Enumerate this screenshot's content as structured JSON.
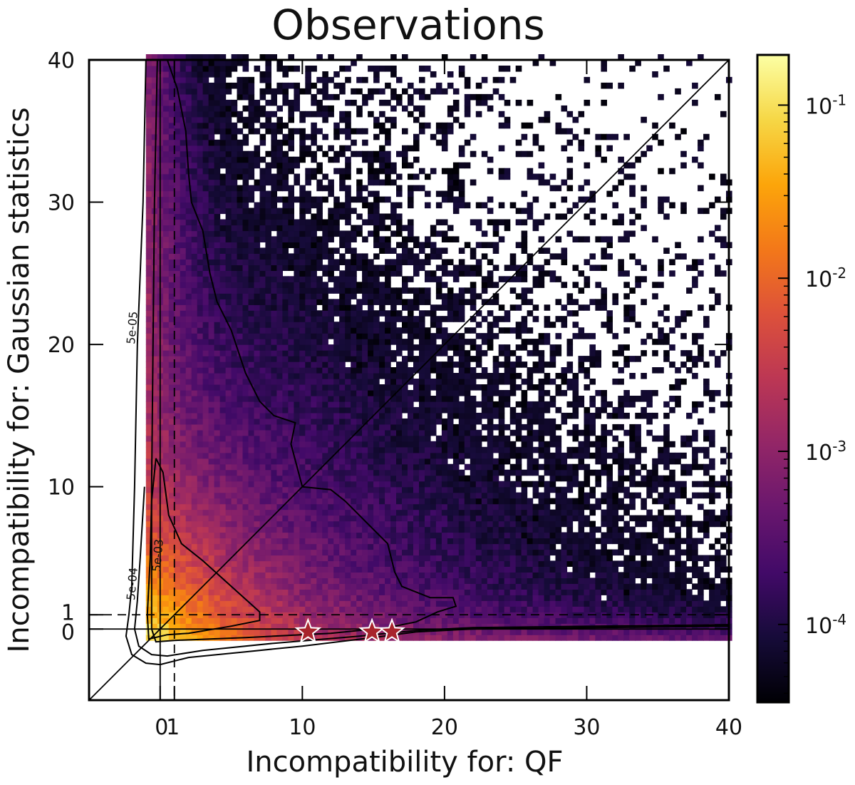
{
  "chart_data": {
    "type": "heatmap",
    "title": "Observations",
    "xlabel": "Incompatibility for: QF",
    "ylabel": "Incompatibility for: Gaussian statistics",
    "xlim": [
      -5,
      40
    ],
    "ylim": [
      -5,
      40
    ],
    "xticks": [
      {
        "v": 0,
        "label": "0"
      },
      {
        "v": 1,
        "label": "1"
      },
      {
        "v": 10,
        "label": "10"
      },
      {
        "v": 20,
        "label": "20"
      },
      {
        "v": 30,
        "label": "30"
      },
      {
        "v": 40,
        "label": "40"
      }
    ],
    "yticks": [
      {
        "v": 0,
        "label": "0"
      },
      {
        "v": 1,
        "label": "1"
      },
      {
        "v": 10,
        "label": "10"
      },
      {
        "v": 20,
        "label": "20"
      },
      {
        "v": 30,
        "label": "30"
      },
      {
        "v": 40,
        "label": "40"
      }
    ],
    "colormap": "inferno",
    "color_scale": "log",
    "colorbar_range": [
      3.55e-05,
      0.195
    ],
    "colorbar_ticks": [
      {
        "v": 0.1,
        "base": "10",
        "exp": "-1"
      },
      {
        "v": 0.01,
        "base": "10",
        "exp": "-2"
      },
      {
        "v": 0.001,
        "base": "10",
        "exp": "-3"
      },
      {
        "v": 0.0001,
        "base": "10",
        "exp": "-4"
      }
    ],
    "reference_lines": [
      {
        "type": "diagonal",
        "eq": "y=x",
        "style": "solid"
      },
      {
        "type": "horizontal",
        "y": 0,
        "style": "solid"
      },
      {
        "type": "horizontal",
        "y": 1,
        "style": "dashed"
      },
      {
        "type": "vertical",
        "x": 0,
        "style": "solid"
      },
      {
        "type": "vertical",
        "x": 1,
        "style": "dashed"
      }
    ],
    "contours": [
      {
        "label": "5e-05",
        "points": [
          [
            -1,
            40
          ],
          [
            -1.2,
            30
          ],
          [
            -1.6,
            20
          ],
          [
            -1.8,
            10
          ],
          [
            -2,
            3
          ],
          [
            -2.2,
            1
          ],
          [
            -2.4,
            -0.5
          ],
          [
            -2,
            -1.8
          ],
          [
            -1,
            -2.4
          ],
          [
            0,
            -2.5
          ],
          [
            2,
            -2
          ],
          [
            6,
            -1.6
          ],
          [
            10,
            -1.2
          ],
          [
            15,
            -0.6
          ],
          [
            18,
            -0.2
          ],
          [
            22,
            0
          ],
          [
            40,
            0.2
          ]
        ]
      },
      {
        "label": "5e-04",
        "points": [
          [
            -1.1,
            10
          ],
          [
            -1.4,
            5
          ],
          [
            -1.6,
            2
          ],
          [
            -1.8,
            0
          ],
          [
            -1.5,
            -1.2
          ],
          [
            -0.6,
            -1.8
          ],
          [
            0.5,
            -1.9
          ],
          [
            3,
            -1.5
          ],
          [
            8,
            -1
          ],
          [
            14,
            -0.5
          ],
          [
            18,
            -0.1
          ],
          [
            22,
            0.1
          ],
          [
            40,
            0.3
          ]
        ]
      },
      {
        "label": "",
        "points": [
          [
            0.5,
            40
          ],
          [
            1.2,
            38
          ],
          [
            1.8,
            35
          ],
          [
            2,
            32
          ],
          [
            2.2,
            30
          ],
          [
            3,
            28
          ],
          [
            3.5,
            25
          ],
          [
            4,
            23
          ],
          [
            5,
            21
          ],
          [
            6,
            18
          ],
          [
            7,
            16
          ],
          [
            8,
            15
          ],
          [
            9.5,
            14.5
          ],
          [
            9.2,
            13
          ],
          [
            10,
            10
          ],
          [
            12,
            9.8
          ],
          [
            13,
            9
          ],
          [
            14,
            8
          ],
          [
            16,
            6
          ],
          [
            16.5,
            4
          ],
          [
            17,
            3
          ],
          [
            19,
            2.2
          ],
          [
            20.6,
            2.2
          ],
          [
            20.8,
            1.6
          ],
          [
            19.5,
            1.2
          ],
          [
            18,
            0.5
          ],
          [
            16,
            0.1
          ],
          [
            12,
            -0.3
          ],
          [
            6,
            -0.6
          ],
          [
            1,
            -0.8
          ],
          [
            -0.3,
            -0.9
          ],
          [
            -0.6,
            0
          ],
          [
            -0.6,
            10
          ],
          [
            -0.4,
            30
          ],
          [
            -0.2,
            40
          ]
        ]
      },
      {
        "label": "5e-03",
        "points": [
          [
            -0.3,
            12
          ],
          [
            0.2,
            11
          ],
          [
            0.6,
            8
          ],
          [
            1.5,
            6
          ],
          [
            3,
            4.8
          ],
          [
            5,
            3
          ],
          [
            7,
            1.2
          ],
          [
            7,
            0.6
          ],
          [
            5,
            0.2
          ],
          [
            2,
            -0.3
          ],
          [
            0.5,
            -0.4
          ],
          [
            -0.8,
            -0.7
          ],
          [
            -0.9,
            1
          ],
          [
            -0.7,
            5
          ],
          [
            -0.6,
            9
          ],
          [
            -0.3,
            12
          ]
        ]
      }
    ],
    "markers": {
      "shape": "star",
      "color": "#a8242c",
      "points": [
        [
          10.4,
          -0.2
        ],
        [
          14.9,
          -0.2
        ],
        [
          16.3,
          -0.2
        ]
      ]
    }
  }
}
